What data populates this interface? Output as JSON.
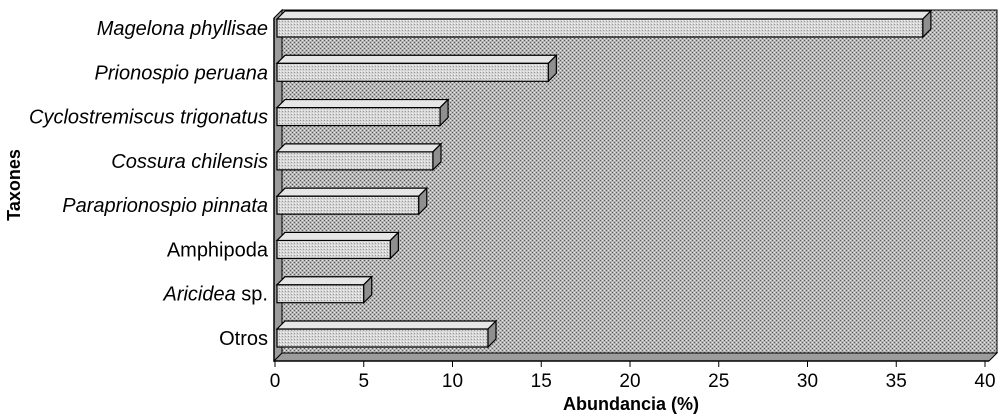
{
  "chart_data": {
    "type": "bar",
    "orientation": "horizontal",
    "categories": [
      "Magelona phyllisae",
      "Prionospio peruana",
      "Cyclostremiscus trigonatus",
      "Cossura chilensis",
      "Paraprionospio pinnata",
      "Amphipoda",
      "Aricidea sp.",
      "Otros"
    ],
    "category_labels": [
      {
        "text": "Magelona phyllisae",
        "italic": true
      },
      {
        "text": "Prionospio peruana",
        "italic": true
      },
      {
        "text": "Cyclostremiscus trigonatus",
        "italic": true
      },
      {
        "text": "Cossura chilensis",
        "italic": true
      },
      {
        "text": "Paraprionospio pinnata",
        "italic": true
      },
      {
        "text": "Amphipoda",
        "italic": false
      },
      {
        "text": "Aricidea",
        "suffix": " sp.",
        "italic": true
      },
      {
        "text": "Otros",
        "italic": false
      }
    ],
    "values": [
      36.5,
      15.4,
      9.3,
      8.9,
      8.1,
      6.5,
      5.0,
      12.0
    ],
    "xlabel": "Abundancia (%)",
    "ylabel": "Taxones",
    "xlim": [
      0,
      40
    ],
    "xticks": [
      "0",
      "5",
      "10",
      "15",
      "20",
      "25",
      "30",
      "35",
      "40"
    ],
    "style": "3d-bar",
    "colors": {
      "plot_background": "#a9a9a9",
      "bar_front": "#d0d0d0",
      "bar_top": "#e6e6e6",
      "bar_side": "#8f8f8f",
      "outline": "#000000"
    }
  }
}
